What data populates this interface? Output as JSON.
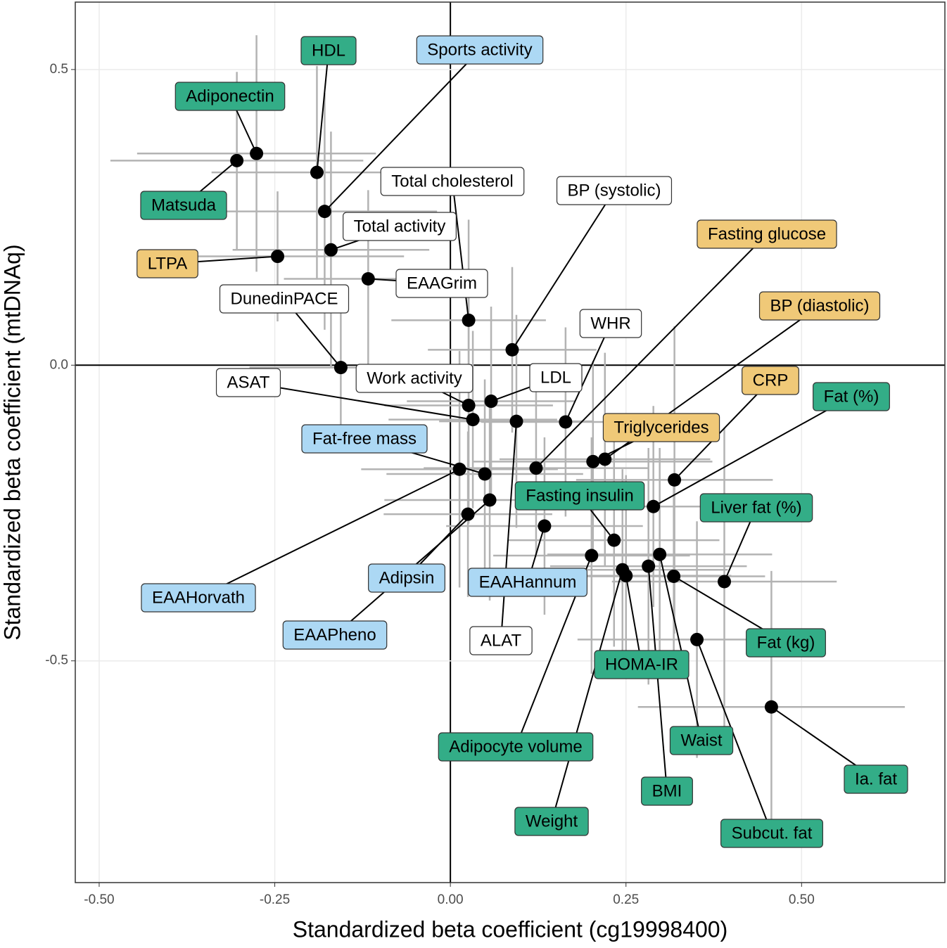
{
  "chart_data": {
    "type": "scatter",
    "xlabel": "Standardized beta coefficient (cg19998400)",
    "ylabel": "Standardized beta coefficient (mtDNAq)",
    "labels": [
      "Adiponectin",
      "Matsuda",
      "HDL",
      "Sports activity",
      "LTPA",
      "Total activity",
      "EAAGrim",
      "Total cholesterol",
      "BP (systolic)",
      "DunedinPACE",
      "Work activity",
      "LDL",
      "ASAT",
      "ALAT",
      "WHR",
      "EAAHorvath",
      "Fat-free mass",
      "EAAPheno",
      "Adipsin",
      "Fasting glucose",
      "Triglycerides",
      "BP (diastolic)",
      "CRP",
      "Fat (%)",
      "EAAHannum",
      "Fasting insulin",
      "Adipocyte volume",
      "Waist",
      "Weight",
      "HOMA-IR",
      "BMI",
      "Fat (kg)",
      "Liver fat (%)",
      "Subcut. fat",
      "Ia. fat"
    ],
    "x": [
      -0.276,
      -0.304,
      -0.19,
      -0.179,
      -0.246,
      -0.17,
      -0.117,
      0.026,
      0.088,
      -0.156,
      0.026,
      0.058,
      0.032,
      0.094,
      0.164,
      0.013,
      0.049,
      0.056,
      0.025,
      0.122,
      0.203,
      0.22,
      0.319,
      0.289,
      0.134,
      0.233,
      0.201,
      0.298,
      0.245,
      0.25,
      0.282,
      0.318,
      0.39,
      0.351,
      0.457
    ],
    "y": [
      0.358,
      0.346,
      0.326,
      0.26,
      0.184,
      0.195,
      0.146,
      0.076,
      0.026,
      -0.004,
      -0.068,
      -0.061,
      -0.092,
      -0.095,
      -0.096,
      -0.176,
      -0.184,
      -0.228,
      -0.252,
      -0.174,
      -0.163,
      -0.159,
      -0.194,
      -0.239,
      -0.272,
      -0.296,
      -0.322,
      -0.32,
      -0.346,
      -0.356,
      -0.34,
      -0.357,
      -0.366,
      -0.464,
      -0.578
    ],
    "xerr": [
      0.17,
      0.18,
      0.15,
      0.16,
      0.18,
      0.14,
      0.12,
      0.11,
      0.12,
      0.13,
      0.12,
      0.12,
      0.12,
      0.11,
      0.12,
      0.14,
      0.14,
      0.15,
      0.12,
      0.16,
      0.17,
      0.15,
      0.14,
      0.15,
      0.14,
      0.15,
      0.14,
      0.16,
      0.15,
      0.15,
      0.14,
      0.13,
      0.16,
      0.17,
      0.19
    ],
    "yerr": [
      0.2,
      0.15,
      0.18,
      0.2,
      0.11,
      0.2,
      0.15,
      0.17,
      0.14,
      0.13,
      0.2,
      0.16,
      0.15,
      0.18,
      0.16,
      0.2,
      0.16,
      0.17,
      0.14,
      0.15,
      0.17,
      0.18,
      0.26,
      0.17,
      0.15,
      0.18,
      0.2,
      0.18,
      0.17,
      0.17,
      0.2,
      0.16,
      0.26,
      0.2,
      0.23
    ],
    "label_colors": [
      "#33ad87",
      "#33ad87",
      "#33ad87",
      "#acd8f4",
      "#f0c978",
      "#ffffff",
      "#ffffff",
      "#ffffff",
      "#ffffff",
      "#ffffff",
      "#ffffff",
      "#ffffff",
      "#ffffff",
      "#ffffff",
      "#ffffff",
      "#acd8f4",
      "#acd8f4",
      "#acd8f4",
      "#acd8f4",
      "#f0c978",
      "#f0c978",
      "#f0c978",
      "#f0c978",
      "#33ad87",
      "#acd8f4",
      "#33ad87",
      "#33ad87",
      "#33ad87",
      "#33ad87",
      "#33ad87",
      "#33ad87",
      "#33ad87",
      "#33ad87",
      "#33ad87",
      "#33ad87"
    ],
    "point_color": "#000000",
    "errorbar_color": "#b3b3b3",
    "xlim": [
      -0.534,
      0.704
    ],
    "ylim": [
      -0.875,
      0.614
    ],
    "xticks": [
      {
        "value": -0.5,
        "label": "-0.50"
      },
      {
        "value": -0.25,
        "label": "-0.25"
      },
      {
        "value": 0,
        "label": "0.00"
      },
      {
        "value": 0.25,
        "label": "0.25"
      },
      {
        "value": 0.5,
        "label": "0.50"
      }
    ],
    "yticks": [
      -0.5,
      {
        "value": 0,
        "label": "0.0"
      },
      0.5
    ],
    "grid": true
  }
}
